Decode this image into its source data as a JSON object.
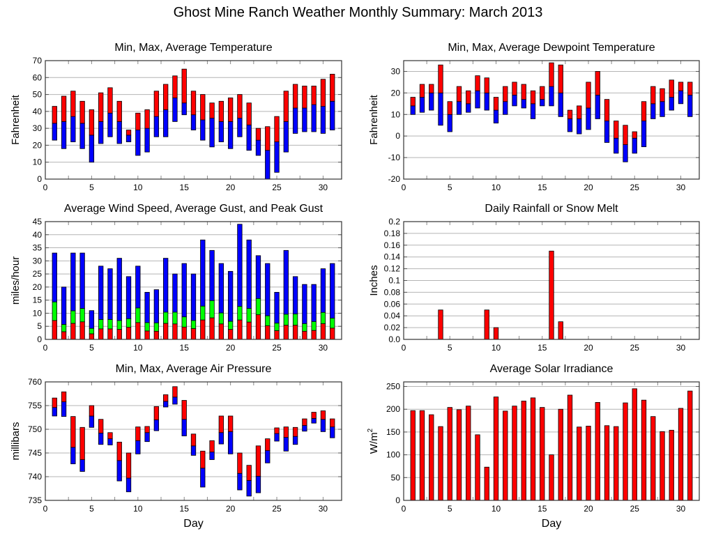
{
  "title": "Ghost Mine Ranch Weather Monthly Summary: March 2013",
  "colors": {
    "red": "#ff0000",
    "blue": "#0000ff",
    "green": "#00ff00",
    "grid": "#b4b4b4"
  },
  "chart_data": [
    {
      "id": "temp",
      "type": "bar",
      "title": "Min, Max, Average Temperature",
      "xlabel": "",
      "ylabel": "Fahrenheit",
      "xlim": [
        0,
        32
      ],
      "xticks": [
        0,
        5,
        10,
        15,
        20,
        25,
        30
      ],
      "ylim": [
        0,
        70
      ],
      "yticks": [
        0,
        10,
        20,
        30,
        40,
        50,
        60,
        70
      ],
      "grid": true,
      "x": [
        1,
        2,
        3,
        4,
        5,
        6,
        7,
        8,
        9,
        10,
        11,
        12,
        13,
        14,
        15,
        16,
        17,
        18,
        19,
        20,
        21,
        22,
        23,
        24,
        25,
        26,
        27,
        28,
        29,
        30,
        31
      ],
      "series": [
        {
          "name": "Min",
          "values": [
            23,
            18,
            22,
            18,
            10,
            21,
            25,
            21,
            22,
            14,
            16,
            25,
            25,
            34,
            38,
            29,
            23,
            19,
            22,
            18,
            25,
            17,
            14,
            0,
            4,
            16,
            27,
            28,
            28,
            27,
            29
          ]
        },
        {
          "name": "Average",
          "values": [
            33,
            34,
            37,
            33,
            26,
            34,
            39,
            34,
            26,
            29,
            30,
            37,
            41,
            48,
            45,
            38,
            35,
            36,
            34,
            34,
            36,
            32,
            23,
            17,
            22,
            34,
            42,
            42,
            44,
            43,
            46
          ]
        },
        {
          "name": "Max",
          "values": [
            43,
            49,
            52,
            46,
            41,
            51,
            54,
            46,
            29,
            39,
            41,
            52,
            56,
            61,
            65,
            52,
            50,
            45,
            46,
            48,
            50,
            45,
            30,
            31,
            37,
            52,
            56,
            55,
            55,
            59,
            62
          ]
        }
      ]
    },
    {
      "id": "dewpoint",
      "type": "bar",
      "title": "Min, Max, Average Dewpoint Temperature",
      "xlabel": "",
      "ylabel": "Fahrenheit",
      "xlim": [
        0,
        32
      ],
      "xticks": [
        0,
        5,
        10,
        15,
        20,
        25,
        30
      ],
      "ylim": [
        -20,
        35
      ],
      "yticks": [
        -20,
        -10,
        0,
        10,
        20,
        30
      ],
      "grid": true,
      "x": [
        1,
        2,
        3,
        4,
        5,
        6,
        7,
        8,
        9,
        10,
        11,
        12,
        13,
        14,
        15,
        16,
        17,
        18,
        19,
        20,
        21,
        22,
        23,
        24,
        25,
        26,
        27,
        28,
        29,
        30,
        31
      ],
      "series": [
        {
          "name": "Min",
          "values": [
            10,
            11,
            12,
            5,
            2,
            10,
            11,
            13,
            12,
            6,
            10,
            14,
            13,
            8,
            14,
            14,
            9,
            2,
            1,
            3,
            8,
            -3,
            -8,
            -12,
            -8,
            -5,
            8,
            9,
            12,
            15,
            9
          ]
        },
        {
          "name": "Average",
          "values": [
            14,
            18,
            20,
            20,
            10,
            16,
            15,
            21,
            20,
            12,
            16,
            19,
            17,
            15,
            17,
            23,
            20,
            8,
            8,
            13,
            19,
            7,
            -1,
            -4,
            -1,
            7,
            15,
            16,
            18,
            21,
            19
          ]
        },
        {
          "name": "Max",
          "values": [
            18,
            24,
            24,
            33,
            16,
            23,
            21,
            28,
            27,
            18,
            23,
            25,
            24,
            21,
            23,
            34,
            33,
            12,
            14,
            25,
            30,
            17,
            7,
            5,
            2,
            16,
            23,
            22,
            26,
            25,
            25
          ]
        }
      ]
    },
    {
      "id": "wind",
      "type": "bar",
      "title": "Average Wind Speed, Average Gust, and Peak Gust",
      "xlabel": "",
      "ylabel": "miles/hour",
      "xlim": [
        0,
        32
      ],
      "xticks": [
        0,
        5,
        10,
        15,
        20,
        25,
        30
      ],
      "ylim": [
        0,
        45
      ],
      "yticks": [
        0,
        5,
        10,
        15,
        20,
        25,
        30,
        35,
        40,
        45
      ],
      "grid": true,
      "x": [
        1,
        2,
        3,
        4,
        5,
        6,
        7,
        8,
        9,
        10,
        11,
        12,
        13,
        14,
        15,
        16,
        17,
        18,
        19,
        20,
        21,
        22,
        23,
        24,
        25,
        26,
        27,
        28,
        29,
        30,
        31
      ],
      "series": [
        {
          "name": "Average Wind Speed",
          "values": [
            7.2,
            2.9,
            6.1,
            6.7,
            2.1,
            4.0,
            4.0,
            3.8,
            4.6,
            6.4,
            3.2,
            3.1,
            6.1,
            5.9,
            4.7,
            4.1,
            7.4,
            8.2,
            5.9,
            3.8,
            7.4,
            6.6,
            9.4,
            5.2,
            3.3,
            5.4,
            5.4,
            3.1,
            3.4,
            6.0,
            4.3
          ]
        },
        {
          "name": "Average Gust",
          "values": [
            14.3,
            5.7,
            10.9,
            11.8,
            4.2,
            7.6,
            7.6,
            7.2,
            7.9,
            12.0,
            6.4,
            6.3,
            10.4,
            10.4,
            8.6,
            7.2,
            12.7,
            14.8,
            10.1,
            6.9,
            12.6,
            11.8,
            15.6,
            9.0,
            6.2,
            9.6,
            9.7,
            6.0,
            6.8,
            10.3,
            8.1
          ]
        },
        {
          "name": "Peak Gust",
          "values": [
            33,
            20,
            33,
            33,
            11,
            28,
            27,
            31,
            24,
            28,
            18,
            19,
            31,
            25,
            29,
            25,
            38,
            34,
            29,
            26,
            44,
            38,
            32,
            29,
            18,
            34,
            24,
            21,
            21,
            27,
            29
          ]
        }
      ]
    },
    {
      "id": "rain",
      "type": "bar",
      "title": "Daily Rainfall or Snow Melt",
      "xlabel": "",
      "ylabel": "Inches",
      "xlim": [
        0,
        32
      ],
      "xticks": [
        0,
        5,
        10,
        15,
        20,
        25,
        30
      ],
      "ylim": [
        0,
        0.2
      ],
      "yticks": [
        "0.0",
        "0.02",
        "0.04",
        "0.06",
        "0.08",
        "0.1",
        "0.12",
        "0.14",
        "0.16",
        "0.18",
        "0.2"
      ],
      "grid": true,
      "x": [
        1,
        2,
        3,
        4,
        5,
        6,
        7,
        8,
        9,
        10,
        11,
        12,
        13,
        14,
        15,
        16,
        17,
        18,
        19,
        20,
        21,
        22,
        23,
        24,
        25,
        26,
        27,
        28,
        29,
        30,
        31
      ],
      "values": [
        0,
        0,
        0,
        0.05,
        0,
        0,
        0,
        0,
        0.05,
        0.02,
        0,
        0,
        0,
        0,
        0,
        0.15,
        0.03,
        0,
        0,
        0,
        0,
        0,
        0,
        0,
        0,
        0,
        0,
        0,
        0,
        0,
        0
      ]
    },
    {
      "id": "pressure",
      "type": "bar",
      "title": "Min, Max, Average Air Pressure",
      "xlabel": "Day",
      "ylabel": "millibars",
      "xlim": [
        0,
        32
      ],
      "xticks": [
        0,
        5,
        10,
        15,
        20,
        25,
        30
      ],
      "ylim": [
        735,
        760
      ],
      "yticks": [
        735,
        740,
        745,
        750,
        755,
        760
      ],
      "grid": true,
      "x": [
        1,
        2,
        3,
        4,
        5,
        6,
        7,
        8,
        9,
        10,
        11,
        12,
        13,
        14,
        15,
        16,
        17,
        18,
        19,
        20,
        21,
        22,
        23,
        24,
        25,
        26,
        27,
        28,
        29,
        30,
        31
      ],
      "series": [
        {
          "name": "Min",
          "values": [
            752.8,
            752.7,
            742.7,
            741.1,
            750.4,
            746.8,
            746.7,
            739.1,
            736.8,
            744.8,
            747.4,
            749.7,
            754.7,
            755.3,
            748.6,
            744.5,
            737.8,
            743.6,
            746.9,
            744.8,
            737.2,
            735.9,
            736.6,
            742.9,
            747.5,
            745.4,
            746.8,
            749.6,
            751.3,
            749.5,
            748.2
          ]
        },
        {
          "name": "Average",
          "values": [
            754.6,
            755.8,
            746.2,
            743.6,
            752.8,
            749.2,
            748.0,
            743.4,
            739.7,
            747.6,
            749.3,
            752.0,
            755.9,
            756.8,
            752.1,
            746.5,
            741.8,
            745.2,
            749.3,
            749.5,
            740.7,
            739.2,
            740.1,
            745.5,
            749.1,
            748.3,
            748.5,
            750.8,
            752.3,
            752.1,
            750.5
          ]
        },
        {
          "name": "Max",
          "values": [
            756.6,
            757.9,
            752.7,
            750.4,
            755.0,
            752.1,
            749.3,
            747.3,
            745.0,
            750.5,
            750.6,
            754.8,
            757.3,
            759.0,
            756.1,
            749.0,
            745.4,
            747.6,
            752.8,
            752.8,
            745.0,
            742.4,
            746.5,
            748.0,
            750.3,
            750.5,
            750.4,
            752.2,
            753.6,
            753.9,
            752.2
          ]
        }
      ]
    },
    {
      "id": "solar",
      "type": "bar",
      "title": "Average Solar Irradiance",
      "xlabel": "Day",
      "ylabel": "W/m",
      "ylabel_sup": "2",
      "xlim": [
        0,
        32
      ],
      "xticks": [
        0,
        5,
        10,
        15,
        20,
        25,
        30
      ],
      "ylim": [
        0,
        260
      ],
      "yticks": [
        0,
        50,
        100,
        150,
        200,
        250
      ],
      "grid": true,
      "x": [
        1,
        2,
        3,
        4,
        5,
        6,
        7,
        8,
        9,
        10,
        11,
        12,
        13,
        14,
        15,
        16,
        17,
        18,
        19,
        20,
        21,
        22,
        23,
        24,
        25,
        26,
        27,
        28,
        29,
        30,
        31
      ],
      "values": [
        197,
        197,
        188,
        162,
        204,
        199,
        207,
        144,
        73,
        227,
        196,
        207,
        218,
        225,
        204,
        100,
        200,
        231,
        161,
        163,
        215,
        164,
        162,
        214,
        245,
        220,
        184,
        151,
        154,
        202,
        240
      ]
    }
  ]
}
